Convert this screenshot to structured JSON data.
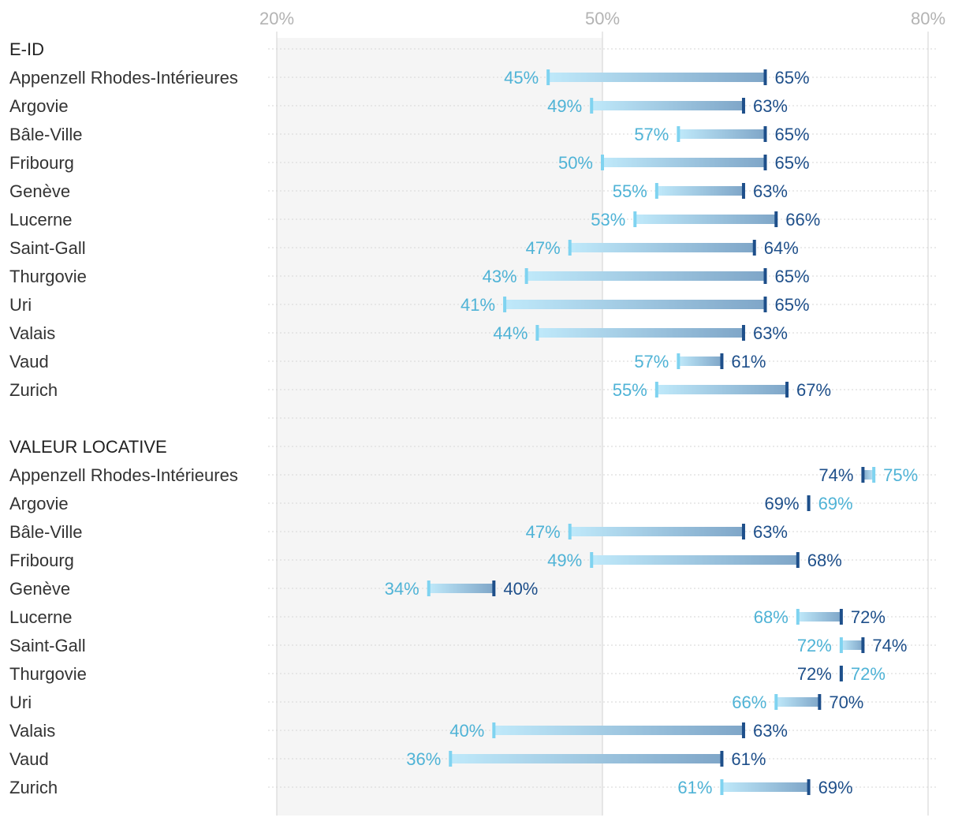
{
  "chart_data": {
    "type": "dumbbell",
    "x_ticks": [
      "20%",
      "50%",
      "80%"
    ],
    "x_tick_values": [
      20,
      50,
      80
    ],
    "xlim": [
      20,
      80
    ],
    "shaded_range": [
      20,
      50
    ],
    "colors": {
      "light": "#7fd3f0",
      "light_text": "#4fb3d6",
      "dark": "#1e4f8a",
      "dark_text": "#1e4f8a",
      "bar_start": "#bfe9fa",
      "bar_end": "#7fa6c8",
      "shade": "#f5f5f5",
      "grid": "#d9d9d9"
    },
    "sections": [
      {
        "title": "E-ID",
        "rows": [
          {
            "label": "Appenzell Rhodes-Intérieures",
            "light": 45,
            "dark": 65,
            "light_label": "45%",
            "dark_label": "65%"
          },
          {
            "label": "Argovie",
            "light": 49,
            "dark": 63,
            "light_label": "49%",
            "dark_label": "63%"
          },
          {
            "label": "Bâle-Ville",
            "light": 57,
            "dark": 65,
            "light_label": "57%",
            "dark_label": "65%"
          },
          {
            "label": "Fribourg",
            "light": 50,
            "dark": 65,
            "light_label": "50%",
            "dark_label": "65%"
          },
          {
            "label": "Genève",
            "light": 55,
            "dark": 63,
            "light_label": "55%",
            "dark_label": "63%"
          },
          {
            "label": "Lucerne",
            "light": 53,
            "dark": 66,
            "light_label": "53%",
            "dark_label": "66%"
          },
          {
            "label": "Saint-Gall",
            "light": 47,
            "dark": 64,
            "light_label": "47%",
            "dark_label": "64%"
          },
          {
            "label": "Thurgovie",
            "light": 43,
            "dark": 65,
            "light_label": "43%",
            "dark_label": "65%"
          },
          {
            "label": "Uri",
            "light": 41,
            "dark": 65,
            "light_label": "41%",
            "dark_label": "65%"
          },
          {
            "label": "Valais",
            "light": 44,
            "dark": 63,
            "light_label": "44%",
            "dark_label": "63%"
          },
          {
            "label": "Vaud",
            "light": 57,
            "dark": 61,
            "light_label": "57%",
            "dark_label": "61%"
          },
          {
            "label": "Zurich",
            "light": 55,
            "dark": 67,
            "light_label": "55%",
            "dark_label": "67%"
          }
        ]
      },
      {
        "title": "VALEUR LOCATIVE",
        "rows": [
          {
            "label": "Appenzell Rhodes-Intérieures",
            "light": 75,
            "dark": 74,
            "light_label": "75%",
            "dark_label": "74%"
          },
          {
            "label": "Argovie",
            "light": 69,
            "dark": 69,
            "light_label": "69%",
            "dark_label": "69%"
          },
          {
            "label": "Bâle-Ville",
            "light": 47,
            "dark": 63,
            "light_label": "47%",
            "dark_label": "63%"
          },
          {
            "label": "Fribourg",
            "light": 49,
            "dark": 68,
            "light_label": "49%",
            "dark_label": "68%"
          },
          {
            "label": "Genève",
            "light": 34,
            "dark": 40,
            "light_label": "34%",
            "dark_label": "40%"
          },
          {
            "label": "Lucerne",
            "light": 68,
            "dark": 72,
            "light_label": "68%",
            "dark_label": "72%"
          },
          {
            "label": "Saint-Gall",
            "light": 72,
            "dark": 74,
            "light_label": "72%",
            "dark_label": "74%"
          },
          {
            "label": "Thurgovie",
            "light": 72,
            "dark": 72,
            "light_label": "72%",
            "dark_label": "72%"
          },
          {
            "label": "Uri",
            "light": 66,
            "dark": 70,
            "light_label": "66%",
            "dark_label": "70%"
          },
          {
            "label": "Valais",
            "light": 40,
            "dark": 63,
            "light_label": "40%",
            "dark_label": "63%"
          },
          {
            "label": "Vaud",
            "light": 36,
            "dark": 61,
            "light_label": "36%",
            "dark_label": "61%"
          },
          {
            "label": "Zurich",
            "light": 61,
            "dark": 69,
            "light_label": "61%",
            "dark_label": "69%"
          }
        ]
      }
    ]
  }
}
